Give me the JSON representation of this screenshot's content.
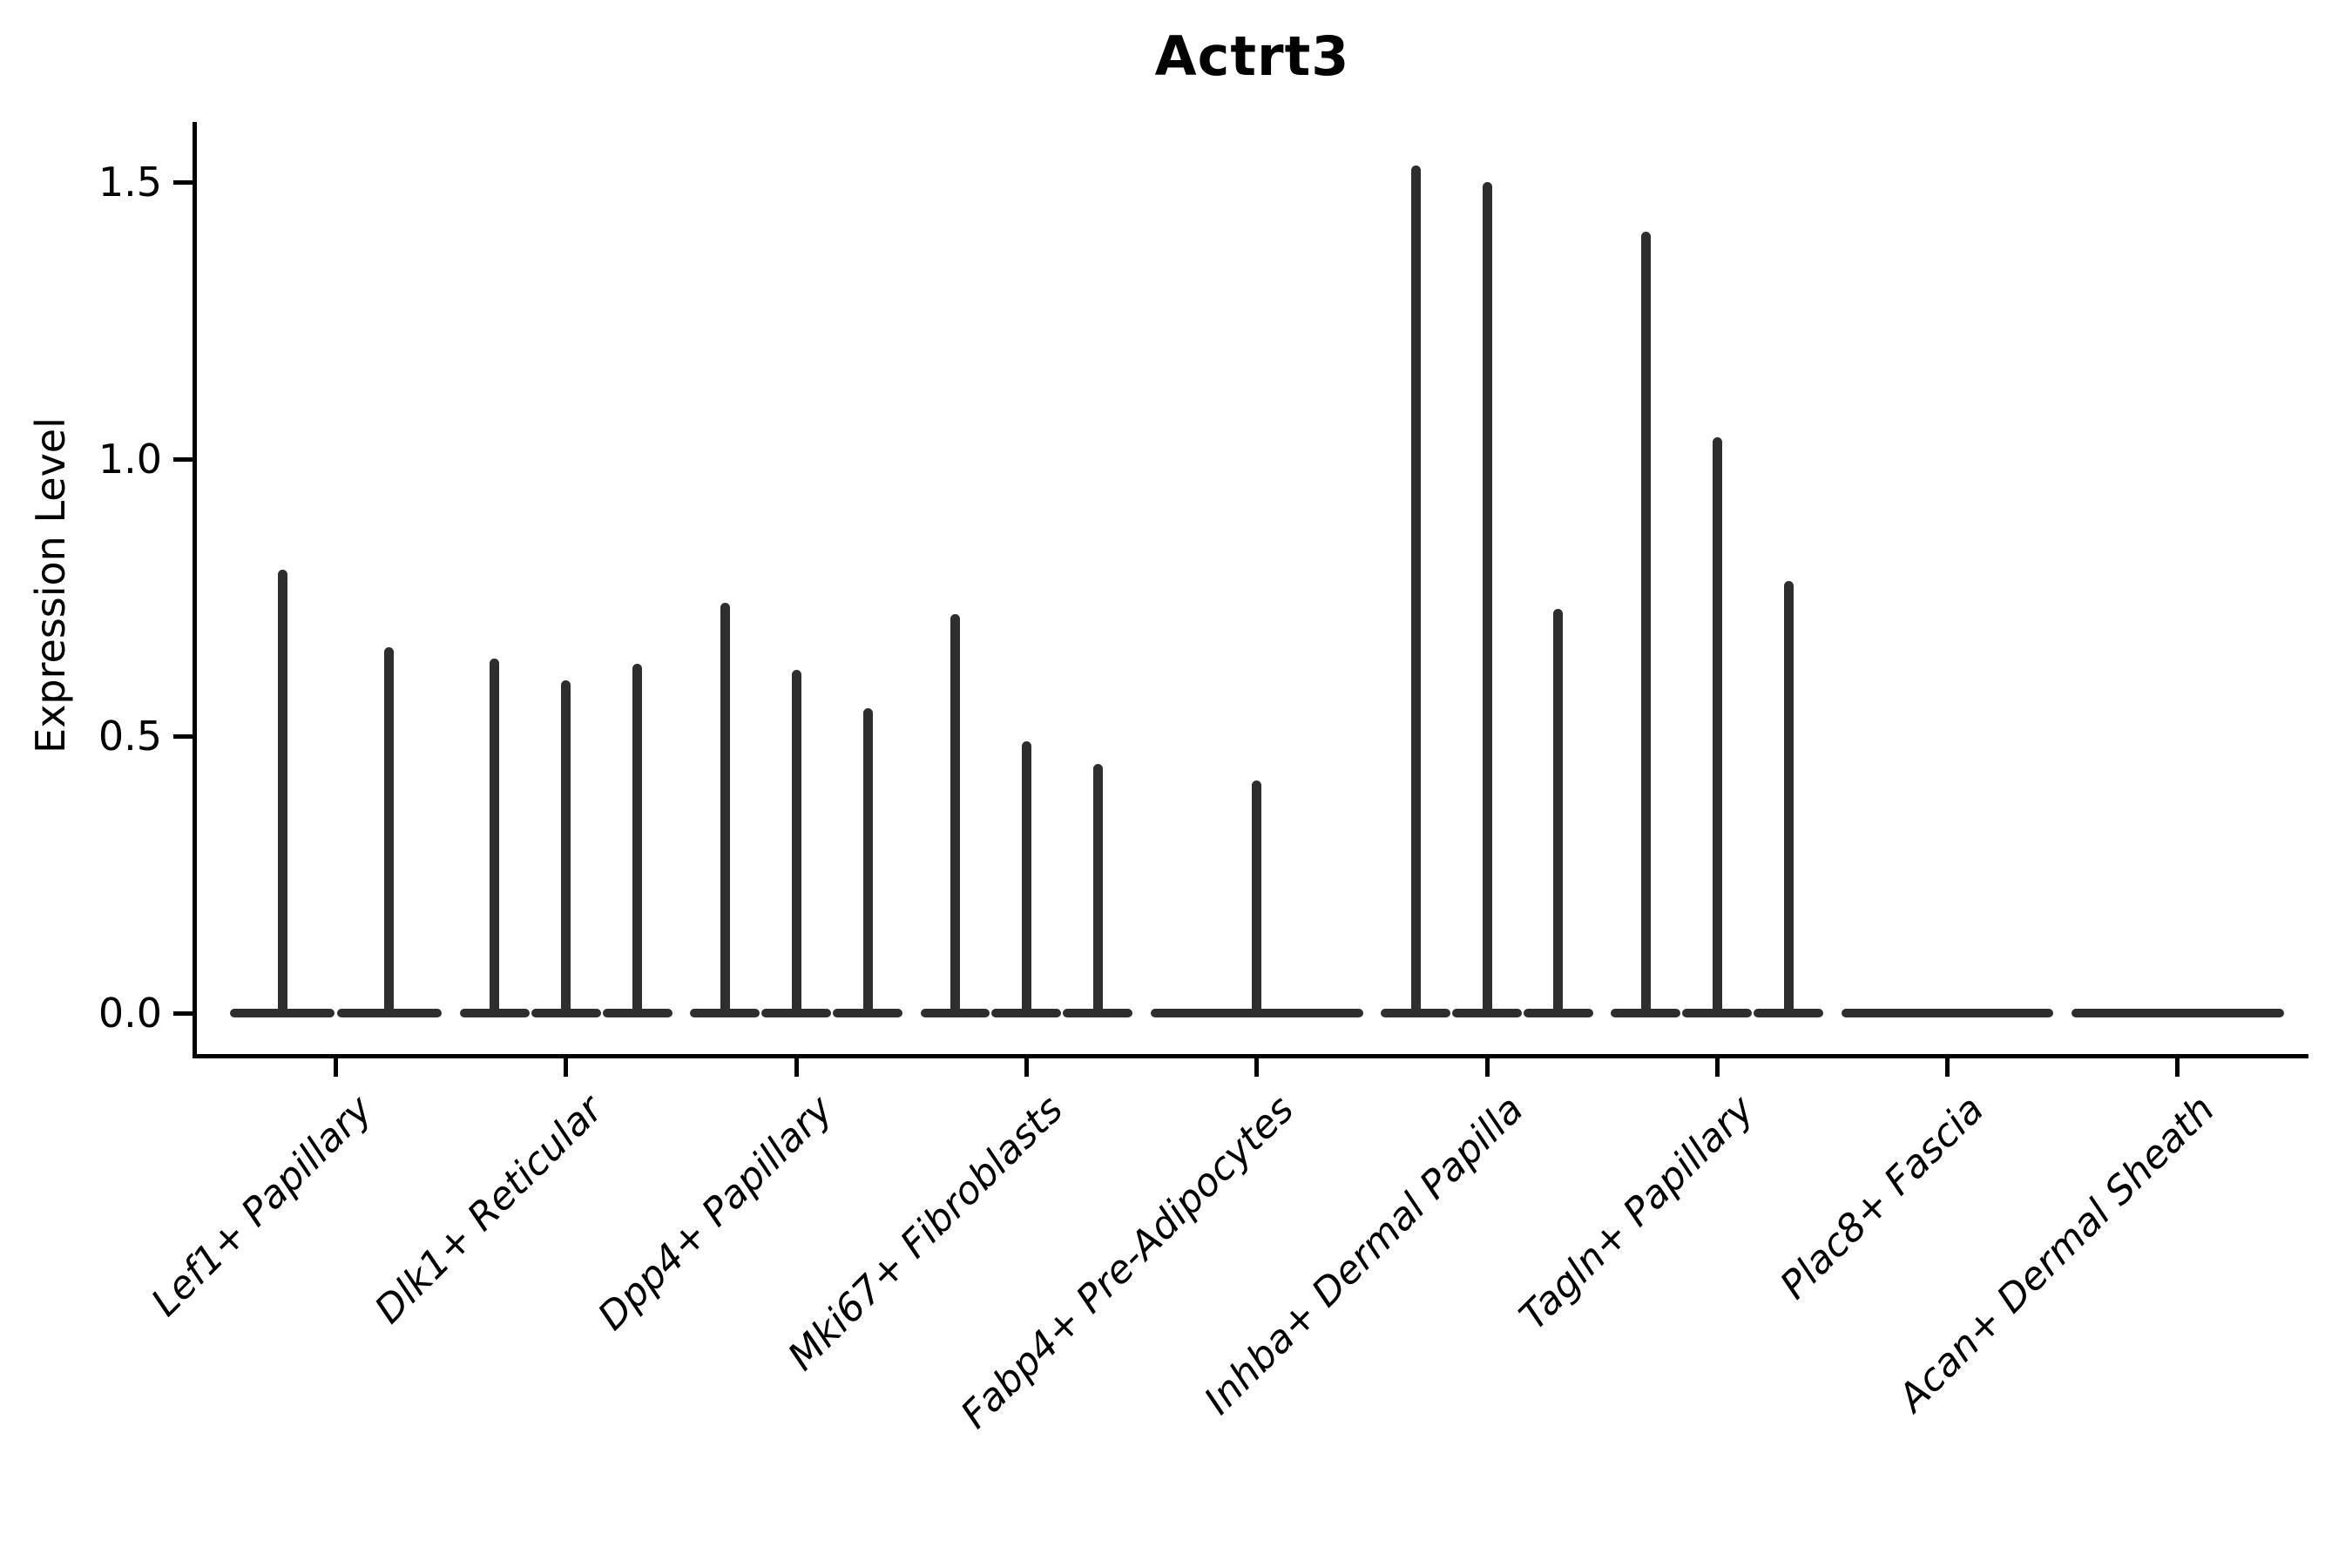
{
  "figure": {
    "title": "Actrt3",
    "ylabel": "Expression Level"
  },
  "chart_data": {
    "type": "violin",
    "title": "Actrt3",
    "xlabel": "",
    "ylabel": "Expression Level",
    "ylim": [
      -0.07,
      1.61
    ],
    "yticks": [
      0.0,
      0.5,
      1.0,
      1.5
    ],
    "ytick_labels": [
      "0.0",
      "0.5",
      "1.0",
      "1.5"
    ],
    "grid": false,
    "legend": "none",
    "baseline_value": 0.0,
    "shape_note": "each violin is flat (mass at 0) with a thin vertical spike up to its maximum",
    "categories": [
      "Lef1+ Papillary",
      "Dlk1+ Reticular",
      "Dpp4+ Papillary",
      "Mki67+ Fibroblasts",
      "Fabp4+ Pre-Adipocytes",
      "Inhba+ Dermal Papilla",
      "Tagln+ Papillary",
      "Plac8+ Fascia",
      "Acan+ Dermal Sheath"
    ],
    "groups": [
      {
        "label": "Lef1+ Papillary",
        "violin_maxima": [
          0.8,
          0.66
        ]
      },
      {
        "label": "Dlk1+ Reticular",
        "violin_maxima": [
          0.64,
          0.6,
          0.63
        ]
      },
      {
        "label": "Dpp4+ Papillary",
        "violin_maxima": [
          0.74,
          0.62,
          0.55
        ]
      },
      {
        "label": "Mki67+ Fibroblasts",
        "violin_maxima": [
          0.72,
          0.49,
          0.45
        ]
      },
      {
        "label": "Fabp4+ Pre-Adipocytes",
        "violin_maxima": [
          0.42
        ]
      },
      {
        "label": "Inhba+ Dermal Papilla",
        "violin_maxima": [
          1.53,
          1.5,
          0.73
        ]
      },
      {
        "label": "Tagln+ Papillary",
        "violin_maxima": [
          1.41,
          1.04,
          0.78
        ]
      },
      {
        "label": "Plac8+ Fascia",
        "violin_maxima": [
          0.0
        ]
      },
      {
        "label": "Acan+ Dermal Sheath",
        "violin_maxima": [
          0.0
        ]
      }
    ],
    "colors": {
      "violin": "#2e2e2e",
      "axis": "#000000",
      "text": "#000000",
      "background": "#ffffff"
    }
  }
}
